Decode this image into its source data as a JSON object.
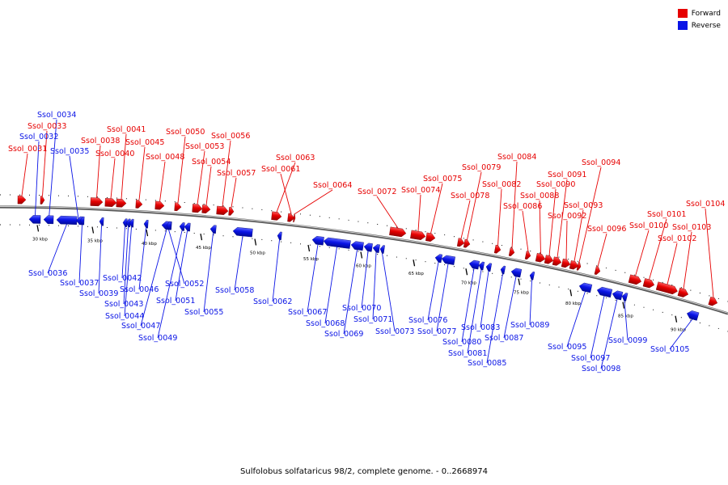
{
  "legend": {
    "forward_label": "Forward",
    "reverse_label": "Reverse",
    "forward_color": "#e60000",
    "reverse_color": "#0a14e6"
  },
  "caption": "Sulfolobus solfataricus 98/2, complete genome. - 0..2668974",
  "scale": {
    "ticks": [
      "30 kbp",
      "35 kbp",
      "40 kbp",
      "45 kbp",
      "50 kbp",
      "55 kbp",
      "60 kbp",
      "65 kbp",
      "70 kbp",
      "75 kbp",
      "80 kbp",
      "85 kbp",
      "90 kbp"
    ]
  },
  "genes": [
    {
      "id": "Ssol_0031",
      "strand": "forward"
    },
    {
      "id": "Ssol_0032",
      "strand": "reverse"
    },
    {
      "id": "Ssol_0033",
      "strand": "forward"
    },
    {
      "id": "Ssol_0034",
      "strand": "reverse"
    },
    {
      "id": "Ssol_0035",
      "strand": "reverse"
    },
    {
      "id": "Ssol_0036",
      "strand": "reverse"
    },
    {
      "id": "Ssol_0037",
      "strand": "reverse"
    },
    {
      "id": "Ssol_0038",
      "strand": "forward"
    },
    {
      "id": "Ssol_0039",
      "strand": "reverse"
    },
    {
      "id": "Ssol_0040",
      "strand": "forward"
    },
    {
      "id": "Ssol_0041",
      "strand": "forward"
    },
    {
      "id": "Ssol_0042",
      "strand": "reverse"
    },
    {
      "id": "Ssol_0043",
      "strand": "reverse"
    },
    {
      "id": "Ssol_0044",
      "strand": "reverse"
    },
    {
      "id": "Ssol_0045",
      "strand": "forward"
    },
    {
      "id": "Ssol_0046",
      "strand": "reverse"
    },
    {
      "id": "Ssol_0047",
      "strand": "reverse"
    },
    {
      "id": "Ssol_0048",
      "strand": "forward"
    },
    {
      "id": "Ssol_0049",
      "strand": "reverse"
    },
    {
      "id": "Ssol_0050",
      "strand": "forward"
    },
    {
      "id": "Ssol_0051",
      "strand": "reverse"
    },
    {
      "id": "Ssol_0052",
      "strand": "reverse"
    },
    {
      "id": "Ssol_0053",
      "strand": "forward"
    },
    {
      "id": "Ssol_0054",
      "strand": "forward"
    },
    {
      "id": "Ssol_0055",
      "strand": "reverse"
    },
    {
      "id": "Ssol_0056",
      "strand": "forward"
    },
    {
      "id": "Ssol_0057",
      "strand": "forward"
    },
    {
      "id": "Ssol_0058",
      "strand": "reverse"
    },
    {
      "id": "Ssol_0061",
      "strand": "forward"
    },
    {
      "id": "Ssol_0062",
      "strand": "reverse"
    },
    {
      "id": "Ssol_0063",
      "strand": "forward"
    },
    {
      "id": "Ssol_0064",
      "strand": "forward"
    },
    {
      "id": "Ssol_0067",
      "strand": "reverse"
    },
    {
      "id": "Ssol_0068",
      "strand": "reverse"
    },
    {
      "id": "Ssol_0069",
      "strand": "reverse"
    },
    {
      "id": "Ssol_0070",
      "strand": "reverse"
    },
    {
      "id": "Ssol_0071",
      "strand": "reverse"
    },
    {
      "id": "Ssol_0072",
      "strand": "forward"
    },
    {
      "id": "Ssol_0073",
      "strand": "reverse"
    },
    {
      "id": "Ssol_0074",
      "strand": "forward"
    },
    {
      "id": "Ssol_0075",
      "strand": "forward"
    },
    {
      "id": "Ssol_0076",
      "strand": "reverse"
    },
    {
      "id": "Ssol_0077",
      "strand": "reverse"
    },
    {
      "id": "Ssol_0078",
      "strand": "forward"
    },
    {
      "id": "Ssol_0079",
      "strand": "forward"
    },
    {
      "id": "Ssol_0080",
      "strand": "reverse"
    },
    {
      "id": "Ssol_0081",
      "strand": "reverse"
    },
    {
      "id": "Ssol_0082",
      "strand": "forward"
    },
    {
      "id": "Ssol_0083",
      "strand": "reverse"
    },
    {
      "id": "Ssol_0084",
      "strand": "forward"
    },
    {
      "id": "Ssol_0085",
      "strand": "reverse"
    },
    {
      "id": "Ssol_0086",
      "strand": "forward"
    },
    {
      "id": "Ssol_0087",
      "strand": "reverse"
    },
    {
      "id": "Ssol_0088",
      "strand": "forward"
    },
    {
      "id": "Ssol_0089",
      "strand": "reverse"
    },
    {
      "id": "Ssol_0090",
      "strand": "forward"
    },
    {
      "id": "Ssol_0091",
      "strand": "forward"
    },
    {
      "id": "Ssol_0092",
      "strand": "forward"
    },
    {
      "id": "Ssol_0093",
      "strand": "forward"
    },
    {
      "id": "Ssol_0094",
      "strand": "forward"
    },
    {
      "id": "Ssol_0095",
      "strand": "reverse"
    },
    {
      "id": "Ssol_0096",
      "strand": "forward"
    },
    {
      "id": "Ssol_0097",
      "strand": "reverse"
    },
    {
      "id": "Ssol_0098",
      "strand": "reverse"
    },
    {
      "id": "Ssol_0099",
      "strand": "reverse"
    },
    {
      "id": "Ssol_0100",
      "strand": "forward"
    },
    {
      "id": "Ssol_0101",
      "strand": "forward"
    },
    {
      "id": "Ssol_0102",
      "strand": "forward"
    },
    {
      "id": "Ssol_0103",
      "strand": "forward"
    },
    {
      "id": "Ssol_0104",
      "strand": "forward"
    },
    {
      "id": "Ssol_0105",
      "strand": "reverse"
    }
  ]
}
